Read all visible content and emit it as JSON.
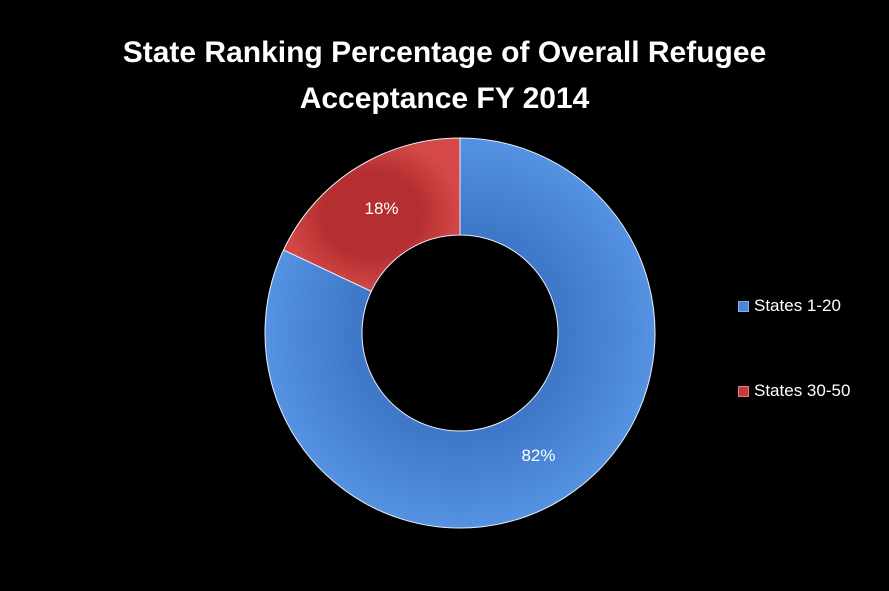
{
  "chart_data": {
    "type": "pie",
    "subtype": "donut",
    "title_lines": [
      "State Ranking Percentage of Overall Refugee",
      "Acceptance FY 2014"
    ],
    "categories": [
      "States 1-20",
      "States 30-50"
    ],
    "values": [
      82,
      18
    ],
    "data_labels": [
      "82%",
      "18%"
    ],
    "colors": [
      "#4a86d8",
      "#c8393a"
    ],
    "legend_position": "right"
  }
}
